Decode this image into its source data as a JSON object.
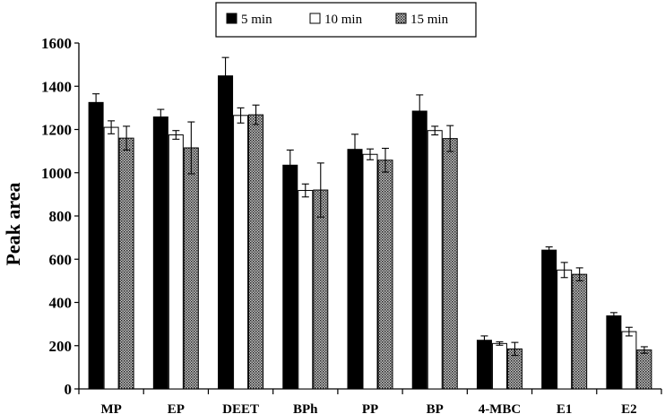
{
  "chart_data": {
    "type": "bar",
    "title": "",
    "xlabel": "",
    "ylabel": "Peak area",
    "ylim": [
      0,
      1600
    ],
    "yticks": [
      0,
      200,
      400,
      600,
      800,
      1000,
      1200,
      1400,
      1600
    ],
    "grid": false,
    "legend_position": "top-center",
    "error_bars": true,
    "categories": [
      "MP",
      "EP",
      "DEET",
      "BPh",
      "PP",
      "BP",
      "4-MBC",
      "E1",
      "E2"
    ],
    "series": [
      {
        "name": "5 min",
        "fill": "solid-black",
        "color": "#000000",
        "values": [
          1325,
          1258,
          1448,
          1035,
          1108,
          1285,
          225,
          642,
          338
        ],
        "errors": [
          40,
          35,
          85,
          70,
          70,
          75,
          20,
          15,
          15
        ]
      },
      {
        "name": "10 min",
        "fill": "white",
        "color": "#ffffff",
        "values": [
          1210,
          1175,
          1265,
          918,
          1085,
          1195,
          210,
          550,
          265
        ],
        "errors": [
          30,
          20,
          35,
          30,
          25,
          20,
          8,
          35,
          20
        ]
      },
      {
        "name": "15 min",
        "fill": "dotted-pattern",
        "color": "#555555",
        "values": [
          1160,
          1115,
          1268,
          920,
          1058,
          1158,
          185,
          530,
          180
        ],
        "errors": [
          55,
          120,
          45,
          125,
          55,
          60,
          30,
          30,
          15
        ]
      }
    ]
  }
}
